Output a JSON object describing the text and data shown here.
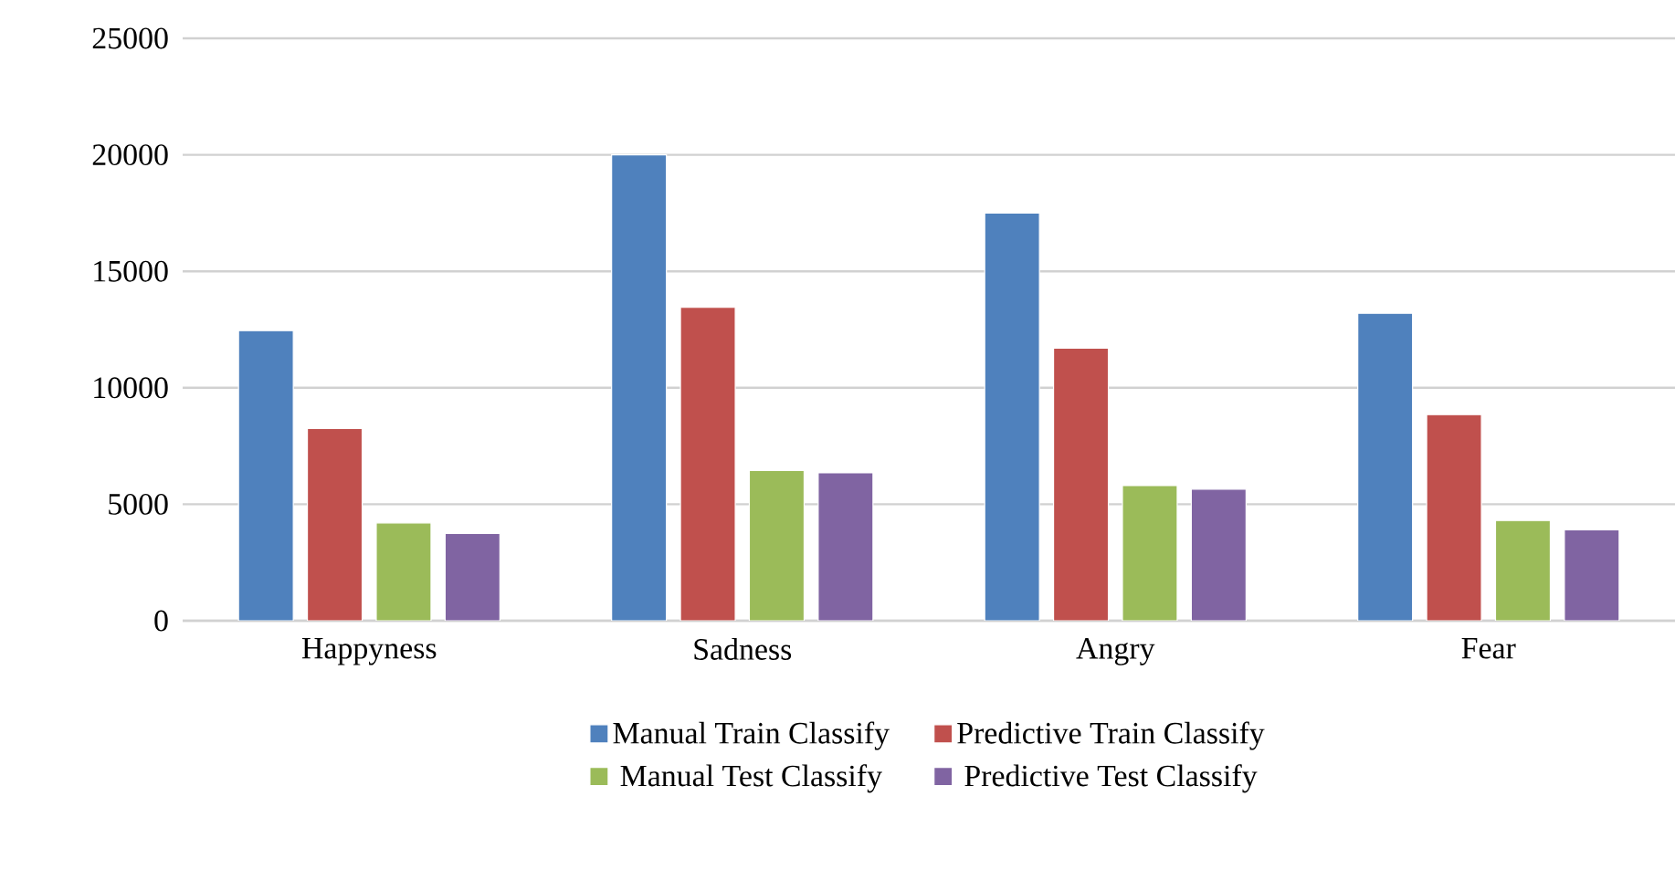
{
  "chart_data": {
    "type": "bar",
    "categories": [
      "Happyness",
      "Sadness",
      "Angry",
      "Fear"
    ],
    "series": [
      {
        "name": "Manual Train Classify",
        "color": "#4f81bd",
        "values": [
          12450,
          20000,
          17500,
          13200
        ]
      },
      {
        "name": "Predictive Train Classify",
        "color": "#c0504d",
        "values": [
          8250,
          13450,
          11700,
          8850
        ]
      },
      {
        "name": "Manual Test Classify",
        "color": "#9bbb59",
        "values": [
          4200,
          6450,
          5800,
          4300
        ]
      },
      {
        "name": "Predictive Test Classify",
        "color": "#8064a2",
        "values": [
          3750,
          6350,
          5650,
          3900
        ]
      }
    ],
    "ylim": [
      0,
      25000
    ],
    "yticks": [
      0,
      5000,
      10000,
      15000,
      20000,
      25000
    ],
    "grid": "y",
    "legend": "bottom"
  }
}
